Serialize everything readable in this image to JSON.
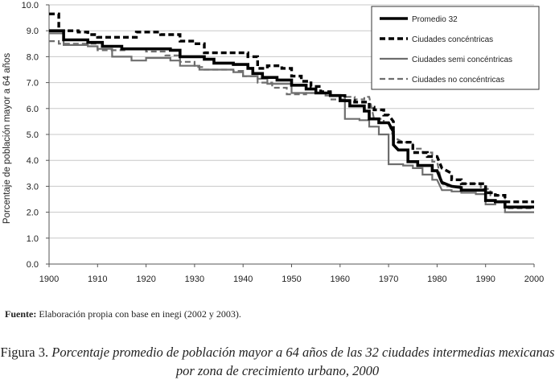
{
  "chart_data": {
    "type": "line",
    "title": "",
    "xlabel": "",
    "ylabel": "Porcentaje de población mayor a 64 años",
    "xlim": [
      1900,
      2000
    ],
    "ylim": [
      0,
      10
    ],
    "x_ticks": [
      "1900",
      "1910",
      "1920",
      "1930",
      "1940",
      "1950",
      "1960",
      "1970",
      "1980",
      "1990",
      "2000"
    ],
    "y_ticks": [
      "0.0",
      "1.0",
      "2.0",
      "3.0",
      "4.0",
      "5.0",
      "6.0",
      "7.0",
      "8.0",
      "9.0",
      "10.0"
    ],
    "legend_position": "top-right",
    "series": [
      {
        "name": "Promedio 32",
        "style": "solid-thick",
        "points": [
          [
            1900,
            9.0
          ],
          [
            1903,
            9.0
          ],
          [
            1903,
            8.65
          ],
          [
            1908,
            8.65
          ],
          [
            1908,
            8.55
          ],
          [
            1911,
            8.55
          ],
          [
            1911,
            8.4
          ],
          [
            1915,
            8.4
          ],
          [
            1915,
            8.3
          ],
          [
            1925,
            8.3
          ],
          [
            1925,
            8.25
          ],
          [
            1927,
            8.25
          ],
          [
            1927,
            8.0
          ],
          [
            1932,
            8.0
          ],
          [
            1932,
            7.9
          ],
          [
            1934,
            7.9
          ],
          [
            1934,
            7.75
          ],
          [
            1938,
            7.75
          ],
          [
            1938,
            7.7
          ],
          [
            1941,
            7.7
          ],
          [
            1941,
            7.55
          ],
          [
            1942,
            7.55
          ],
          [
            1942,
            7.35
          ],
          [
            1944,
            7.35
          ],
          [
            1944,
            7.2
          ],
          [
            1947,
            7.2
          ],
          [
            1947,
            7.1
          ],
          [
            1950,
            7.1
          ],
          [
            1950,
            6.9
          ],
          [
            1953,
            6.9
          ],
          [
            1953,
            6.75
          ],
          [
            1955,
            6.75
          ],
          [
            1955,
            6.6
          ],
          [
            1958,
            6.6
          ],
          [
            1958,
            6.5
          ],
          [
            1960,
            6.5
          ],
          [
            1960,
            6.3
          ],
          [
            1962,
            6.3
          ],
          [
            1962,
            6.1
          ],
          [
            1965,
            6.1
          ],
          [
            1965,
            5.9
          ],
          [
            1966,
            5.9
          ],
          [
            1966,
            5.6
          ],
          [
            1968,
            5.6
          ],
          [
            1968,
            5.45
          ],
          [
            1970,
            5.45
          ],
          [
            1971,
            5.1
          ],
          [
            1971,
            4.6
          ],
          [
            1972,
            4.4
          ],
          [
            1974,
            4.4
          ],
          [
            1974,
            3.95
          ],
          [
            1976,
            3.95
          ],
          [
            1976,
            3.8
          ],
          [
            1979,
            3.8
          ],
          [
            1979,
            3.6
          ],
          [
            1980,
            3.6
          ],
          [
            1981,
            3.15
          ],
          [
            1983,
            3.0
          ],
          [
            1985,
            2.95
          ],
          [
            1985,
            2.85
          ],
          [
            1990,
            2.85
          ],
          [
            1990,
            2.45
          ],
          [
            1992,
            2.45
          ],
          [
            1992,
            2.4
          ],
          [
            1994,
            2.4
          ],
          [
            1994,
            2.2
          ],
          [
            2000,
            2.2
          ]
        ]
      },
      {
        "name": "Ciudades concéntricas",
        "style": "dashed-thick",
        "points": [
          [
            1900,
            9.65
          ],
          [
            1902,
            9.65
          ],
          [
            1902,
            9.0
          ],
          [
            1906,
            9.0
          ],
          [
            1906,
            8.95
          ],
          [
            1908,
            8.95
          ],
          [
            1908,
            8.85
          ],
          [
            1910,
            8.85
          ],
          [
            1910,
            8.75
          ],
          [
            1918,
            8.75
          ],
          [
            1918,
            8.95
          ],
          [
            1923,
            8.95
          ],
          [
            1923,
            8.85
          ],
          [
            1927,
            8.85
          ],
          [
            1927,
            8.6
          ],
          [
            1930,
            8.6
          ],
          [
            1930,
            8.5
          ],
          [
            1932,
            8.5
          ],
          [
            1932,
            8.15
          ],
          [
            1941,
            8.15
          ],
          [
            1941,
            8.0
          ],
          [
            1943,
            8.0
          ],
          [
            1943,
            7.55
          ],
          [
            1945,
            7.55
          ],
          [
            1945,
            7.65
          ],
          [
            1948,
            7.65
          ],
          [
            1948,
            7.55
          ],
          [
            1950,
            7.55
          ],
          [
            1950,
            7.25
          ],
          [
            1952,
            7.25
          ],
          [
            1952,
            7.05
          ],
          [
            1954,
            7.05
          ],
          [
            1954,
            6.85
          ],
          [
            1956,
            6.85
          ],
          [
            1956,
            6.65
          ],
          [
            1958,
            6.65
          ],
          [
            1958,
            6.5
          ],
          [
            1961,
            6.5
          ],
          [
            1961,
            6.3
          ],
          [
            1963,
            6.3
          ],
          [
            1963,
            6.25
          ],
          [
            1966,
            6.25
          ],
          [
            1966,
            6.05
          ],
          [
            1967,
            6.05
          ],
          [
            1967,
            5.95
          ],
          [
            1969,
            5.95
          ],
          [
            1969,
            5.75
          ],
          [
            1970,
            5.75
          ],
          [
            1971,
            5.5
          ],
          [
            1971,
            4.8
          ],
          [
            1972,
            4.7
          ],
          [
            1975,
            4.7
          ],
          [
            1975,
            4.3
          ],
          [
            1978,
            4.3
          ],
          [
            1978,
            4.15
          ],
          [
            1980,
            4.15
          ],
          [
            1981,
            3.7
          ],
          [
            1983,
            3.5
          ],
          [
            1983,
            3.25
          ],
          [
            1985,
            3.25
          ],
          [
            1985,
            3.1
          ],
          [
            1990,
            3.1
          ],
          [
            1990,
            2.75
          ],
          [
            1992,
            2.75
          ],
          [
            1992,
            2.65
          ],
          [
            1994,
            2.65
          ],
          [
            1994,
            2.4
          ],
          [
            2000,
            2.4
          ]
        ]
      },
      {
        "name": "Ciudades semi concéntricas",
        "style": "solid-gray",
        "points": [
          [
            1900,
            8.9
          ],
          [
            1903,
            8.9
          ],
          [
            1903,
            8.45
          ],
          [
            1908,
            8.45
          ],
          [
            1908,
            8.4
          ],
          [
            1910,
            8.4
          ],
          [
            1910,
            8.3
          ],
          [
            1913,
            8.3
          ],
          [
            1913,
            8.0
          ],
          [
            1917,
            8.0
          ],
          [
            1917,
            7.85
          ],
          [
            1920,
            7.85
          ],
          [
            1920,
            7.95
          ],
          [
            1925,
            7.95
          ],
          [
            1925,
            7.85
          ],
          [
            1927,
            7.85
          ],
          [
            1927,
            7.65
          ],
          [
            1931,
            7.65
          ],
          [
            1931,
            7.5
          ],
          [
            1938,
            7.5
          ],
          [
            1938,
            7.4
          ],
          [
            1940,
            7.4
          ],
          [
            1940,
            7.25
          ],
          [
            1943,
            7.25
          ],
          [
            1943,
            7.15
          ],
          [
            1945,
            7.15
          ],
          [
            1945,
            6.95
          ],
          [
            1950,
            6.95
          ],
          [
            1950,
            6.6
          ],
          [
            1957,
            6.6
          ],
          [
            1957,
            6.5
          ],
          [
            1961,
            6.5
          ],
          [
            1961,
            5.6
          ],
          [
            1964,
            5.6
          ],
          [
            1964,
            5.55
          ],
          [
            1966,
            5.55
          ],
          [
            1966,
            5.3
          ],
          [
            1968,
            5.3
          ],
          [
            1968,
            5.0
          ],
          [
            1970,
            5.0
          ],
          [
            1970,
            3.85
          ],
          [
            1973,
            3.85
          ],
          [
            1973,
            3.8
          ],
          [
            1975,
            3.8
          ],
          [
            1975,
            3.7
          ],
          [
            1977,
            3.7
          ],
          [
            1977,
            3.45
          ],
          [
            1979,
            3.45
          ],
          [
            1979,
            3.25
          ],
          [
            1980,
            3.25
          ],
          [
            1981,
            2.85
          ],
          [
            1983,
            2.85
          ],
          [
            1983,
            2.8
          ],
          [
            1985,
            2.8
          ],
          [
            1985,
            2.75
          ],
          [
            1988,
            2.75
          ],
          [
            1988,
            2.7
          ],
          [
            1990,
            2.7
          ],
          [
            1990,
            2.3
          ],
          [
            1992,
            2.3
          ],
          [
            1992,
            2.4
          ],
          [
            1994,
            2.4
          ],
          [
            1994,
            2.0
          ],
          [
            2000,
            2.0
          ]
        ]
      },
      {
        "name": "Ciudades no concéntricas",
        "style": "dashed-gray",
        "points": [
          [
            1900,
            8.6
          ],
          [
            1902,
            8.6
          ],
          [
            1902,
            8.5
          ],
          [
            1910,
            8.5
          ],
          [
            1910,
            8.25
          ],
          [
            1916,
            8.25
          ],
          [
            1916,
            8.3
          ],
          [
            1920,
            8.3
          ],
          [
            1920,
            8.2
          ],
          [
            1924,
            8.2
          ],
          [
            1924,
            8.05
          ],
          [
            1927,
            8.05
          ],
          [
            1927,
            7.8
          ],
          [
            1930,
            7.8
          ],
          [
            1930,
            7.6
          ],
          [
            1932,
            7.6
          ],
          [
            1932,
            7.5
          ],
          [
            1938,
            7.5
          ],
          [
            1938,
            7.45
          ],
          [
            1940,
            7.45
          ],
          [
            1940,
            7.25
          ],
          [
            1943,
            7.25
          ],
          [
            1943,
            7.0
          ],
          [
            1946,
            7.0
          ],
          [
            1946,
            6.8
          ],
          [
            1949,
            6.8
          ],
          [
            1949,
            6.55
          ],
          [
            1953,
            6.55
          ],
          [
            1953,
            6.6
          ],
          [
            1958,
            6.6
          ],
          [
            1958,
            6.35
          ],
          [
            1961,
            6.35
          ],
          [
            1961,
            6.45
          ],
          [
            1963,
            6.45
          ],
          [
            1963,
            6.35
          ],
          [
            1965,
            6.35
          ],
          [
            1965,
            6.45
          ],
          [
            1966,
            6.45
          ],
          [
            1967,
            5.6
          ],
          [
            1969,
            5.6
          ],
          [
            1969,
            5.45
          ],
          [
            1970,
            5.45
          ],
          [
            1971,
            4.9
          ],
          [
            1973,
            4.7
          ],
          [
            1975,
            4.7
          ],
          [
            1975,
            4.45
          ],
          [
            1977,
            4.45
          ],
          [
            1977,
            4.3
          ],
          [
            1979,
            4.3
          ],
          [
            1979,
            3.95
          ],
          [
            1980,
            3.95
          ],
          [
            1981,
            3.1
          ],
          [
            1982,
            3.0
          ],
          [
            1985,
            3.0
          ],
          [
            1985,
            3.1
          ],
          [
            1989,
            3.1
          ],
          [
            1989,
            2.9
          ],
          [
            1991,
            2.9
          ],
          [
            1991,
            2.65
          ],
          [
            1994,
            2.65
          ],
          [
            1994,
            2.15
          ],
          [
            2000,
            2.15
          ]
        ]
      }
    ]
  },
  "footer": {
    "source_label": "Fuente:",
    "source_text": " Elaboración propia con base en inegi (2002 y 2003).",
    "figure_label": "Figura 3.",
    "figure_caption": " Porcentaje promedio de población mayor a 64 años de las 32 ciudades intermedias mexicanas por zona de crecimiento urbano, 2000"
  }
}
